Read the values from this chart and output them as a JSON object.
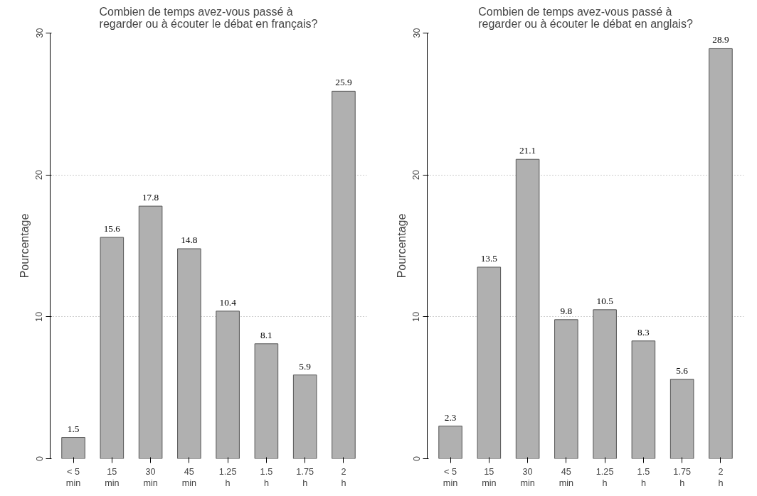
{
  "chart_data": [
    {
      "type": "bar",
      "title": "Combien de temps avez-vous passé à\nregarder ou à écouter le débat en français?",
      "ylabel": "Pourcentage",
      "categories": [
        "< 5\nmin",
        "15\nmin",
        "30\nmin",
        "45\nmin",
        "1.25\nh",
        "1.5\nh",
        "1.75\nh",
        "2\nh"
      ],
      "values": [
        1.5,
        15.6,
        17.8,
        14.8,
        10.4,
        8.1,
        5.9,
        25.9
      ],
      "color": "#b0b0b0",
      "ylim": [
        0,
        30
      ],
      "yticks": [
        0,
        10,
        20,
        30
      ],
      "grid": "y",
      "data_labels": true
    },
    {
      "type": "bar",
      "title": "Combien de temps avez-vous passé à\nregarder ou à écouter le débat en anglais?",
      "ylabel": "Pourcentage",
      "categories": [
        "< 5\nmin",
        "15\nmin",
        "30\nmin",
        "45\nmin",
        "1.25\nh",
        "1.5\nh",
        "1.75\nh",
        "2\nh"
      ],
      "values": [
        2.3,
        13.5,
        21.1,
        9.8,
        10.5,
        8.3,
        5.6,
        28.9
      ],
      "color": "#b0b0b0",
      "ylim": [
        0,
        30
      ],
      "yticks": [
        0,
        10,
        20,
        30
      ],
      "grid": "y",
      "data_labels": true
    }
  ]
}
